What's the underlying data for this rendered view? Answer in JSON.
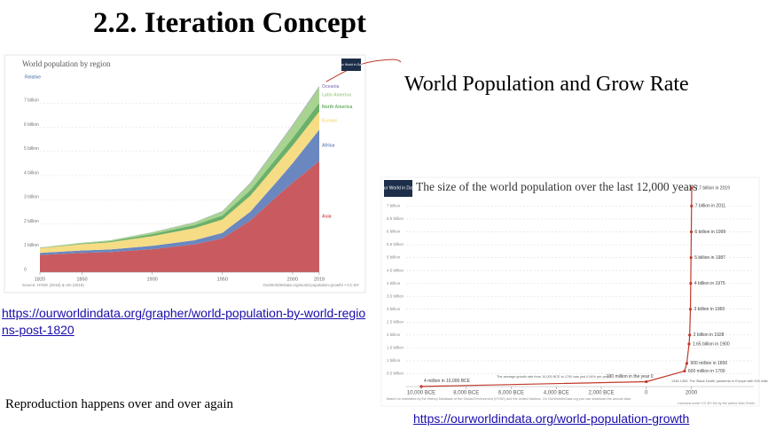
{
  "slide": {
    "title": "2.2. Iteration Concept",
    "subtitle": "World Population and Grow Rate",
    "link1": "https://ourworldindata.org/grapher/world-population-by-world-regions-post-1820",
    "caption": "Reproduction happens over and over again",
    "link2": "https://ourworldindata.org/world-population-growth"
  },
  "chart_data": [
    {
      "type": "area",
      "stacked": true,
      "title": "World population by region",
      "toggle": "Relative",
      "logo": "Our World in Data",
      "source": "Source: HYDE (2016) & UN (2019)",
      "credit": "OurWorldInData.org/world-population-growth/ • CC BY",
      "x": [
        1820,
        1850,
        1870,
        1900,
        1930,
        1950,
        1970,
        1990,
        2000,
        2019
      ],
      "xlim": [
        1820,
        2019
      ],
      "xticks": [
        1820,
        1850,
        1900,
        1950,
        2000,
        2019
      ],
      "ylim": [
        0,
        8
      ],
      "yticks": [
        0,
        {
          "value": 1,
          "label": "1 billion"
        },
        {
          "value": 2,
          "label": "2 billion"
        },
        {
          "value": 3,
          "label": "3 billion"
        },
        {
          "value": 4,
          "label": "4 billion"
        },
        {
          "value": 5,
          "label": "5 billion"
        },
        {
          "value": 6,
          "label": "6 billion"
        },
        {
          "value": 7,
          "label": "7 billion"
        }
      ],
      "grid": true,
      "series": [
        {
          "name": "Asia",
          "color": "#c95a5f",
          "values": [
            0.71,
            0.8,
            0.83,
            0.95,
            1.15,
            1.4,
            2.14,
            3.2,
            3.7,
            4.6
          ]
        },
        {
          "name": "Africa",
          "color": "#6a87bf",
          "values": [
            0.09,
            0.1,
            0.11,
            0.14,
            0.17,
            0.23,
            0.37,
            0.63,
            0.81,
            1.3
          ]
        },
        {
          "name": "Europe",
          "color": "#f6dc85",
          "values": [
            0.19,
            0.26,
            0.3,
            0.4,
            0.5,
            0.55,
            0.66,
            0.72,
            0.73,
            0.75
          ]
        },
        {
          "name": "North America",
          "color": "#6bb06a",
          "values": [
            0.01,
            0.03,
            0.04,
            0.09,
            0.13,
            0.17,
            0.23,
            0.28,
            0.31,
            0.36
          ]
        },
        {
          "name": "Latin America",
          "color": "#a8d391",
          "values": [
            0.02,
            0.03,
            0.04,
            0.07,
            0.11,
            0.17,
            0.29,
            0.44,
            0.52,
            0.65
          ]
        },
        {
          "name": "Oceania",
          "color": "#9b8fc4",
          "values": [
            0.002,
            0.002,
            0.002,
            0.006,
            0.01,
            0.013,
            0.02,
            0.027,
            0.031,
            0.04
          ]
        }
      ]
    },
    {
      "type": "line",
      "title": "The size of the world population over the last 12,000 years",
      "logo": "Our World in Data",
      "x": [
        -10000,
        0,
        1700,
        1800,
        1900,
        1928,
        1960,
        1975,
        1987,
        1999,
        2011,
        2019
      ],
      "xlim": [
        -10000,
        2019
      ],
      "xticks": [
        {
          "value": -10000,
          "label": "10,000 BCE"
        },
        {
          "value": -8000,
          "label": "8,000 BCE"
        },
        {
          "value": -6000,
          "label": "6,000 BCE"
        },
        {
          "value": -4000,
          "label": "4,000 BCE"
        },
        {
          "value": -2000,
          "label": "2,000 BCE"
        },
        0,
        2000
      ],
      "ylim": [
        0,
        7.7
      ],
      "yticks": [
        {
          "value": 0.5,
          "label": "0.5 billion"
        },
        {
          "value": 1,
          "label": "1 billion"
        },
        {
          "value": 1.5,
          "label": "1.5 billion"
        },
        {
          "value": 2,
          "label": "2 billion"
        },
        {
          "value": 2.5,
          "label": "2.5 billion"
        },
        {
          "value": 3,
          "label": "3 billion"
        },
        {
          "value": 3.5,
          "label": "3.5 billion"
        },
        {
          "value": 4,
          "label": "4 billion"
        },
        {
          "value": 4.5,
          "label": "4.5 billion"
        },
        {
          "value": 5,
          "label": "5 billion"
        },
        {
          "value": 5.5,
          "label": "5.5 billion"
        },
        {
          "value": 6,
          "label": "6 billion"
        },
        {
          "value": 6.5,
          "label": "6.5 billion"
        },
        {
          "value": 7,
          "label": "7 billion"
        }
      ],
      "grid": true,
      "series": [
        {
          "color": "#c0392b",
          "values": [
            0.004,
            0.19,
            0.6,
            0.9,
            1.65,
            2,
            3,
            4,
            5,
            6,
            7,
            7.7
          ],
          "value_labels": [
            "4 million in 10,000 BCE",
            "190 million in the year 0",
            "600 million in 1700",
            "900 million in 1800",
            "1.65 billion in 1900",
            "2 billion in 1928",
            "3 billion in 1960",
            "4 billion in 1975",
            "5 billion in 1987",
            "6 billion in 1999",
            "7 billion in 2011",
            "7.7 billion in 2019"
          ]
        }
      ],
      "notes": [
        "The average growth rate from 10,000 BCE to 1700 was just 0.04% per year",
        "1346-1353: The 'Black Death' pandemic in Europe with 200 million people"
      ],
      "source": "Based on estimates by the History Database of the Global Environment (HYDE) and the United Nations. On OurWorldInData.org you can download the annual data.",
      "credit": "Licensed under CC-BY-SA by the author Max Roser."
    }
  ]
}
